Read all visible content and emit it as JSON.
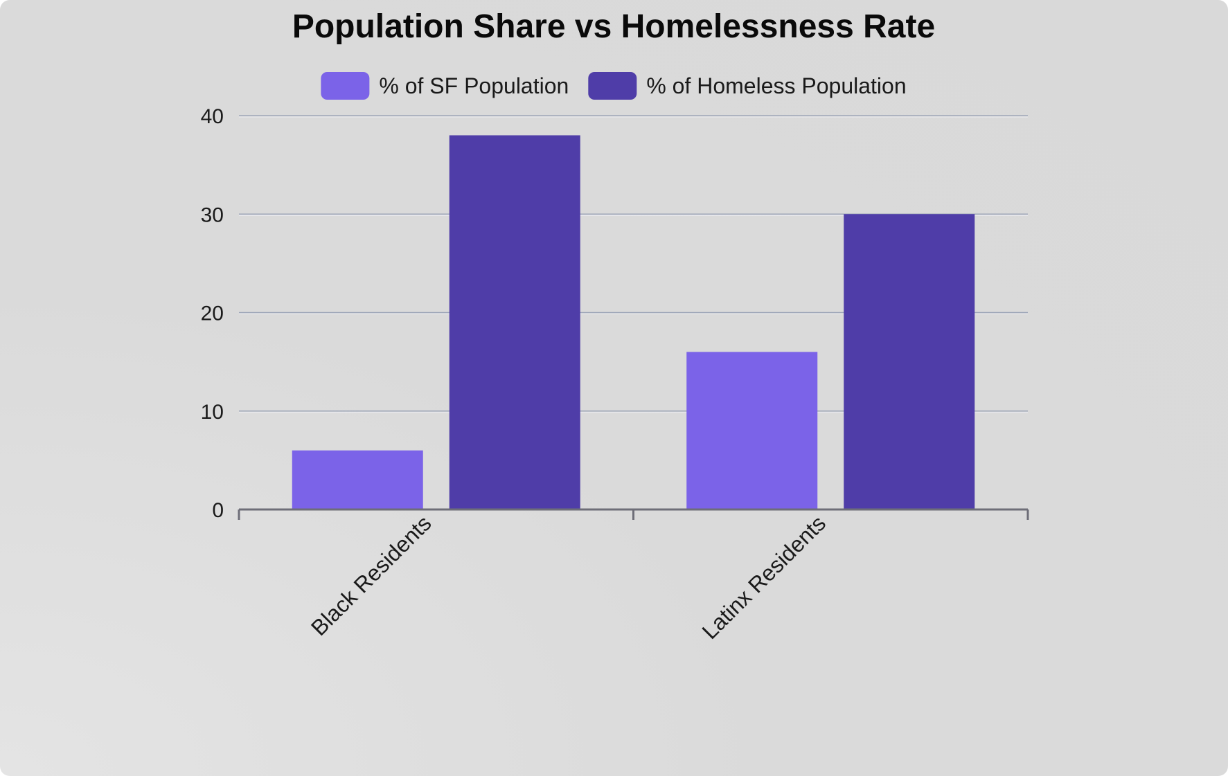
{
  "chart_data": {
    "type": "bar",
    "title": "Population Share vs Homelessness Rate",
    "categories": [
      "Black Residents",
      "Latinx Residents"
    ],
    "series": [
      {
        "name": "% of SF Population",
        "values": [
          6,
          16
        ],
        "color": "#7b63e8"
      },
      {
        "name": "% of Homeless Population",
        "values": [
          38,
          30
        ],
        "color": "#4f3da8"
      }
    ],
    "yticks": [
      0,
      10,
      20,
      30,
      40
    ],
    "ylim": [
      0,
      40
    ],
    "xlabel": "",
    "ylabel": "",
    "grid": true,
    "legend_position": "top-center"
  }
}
